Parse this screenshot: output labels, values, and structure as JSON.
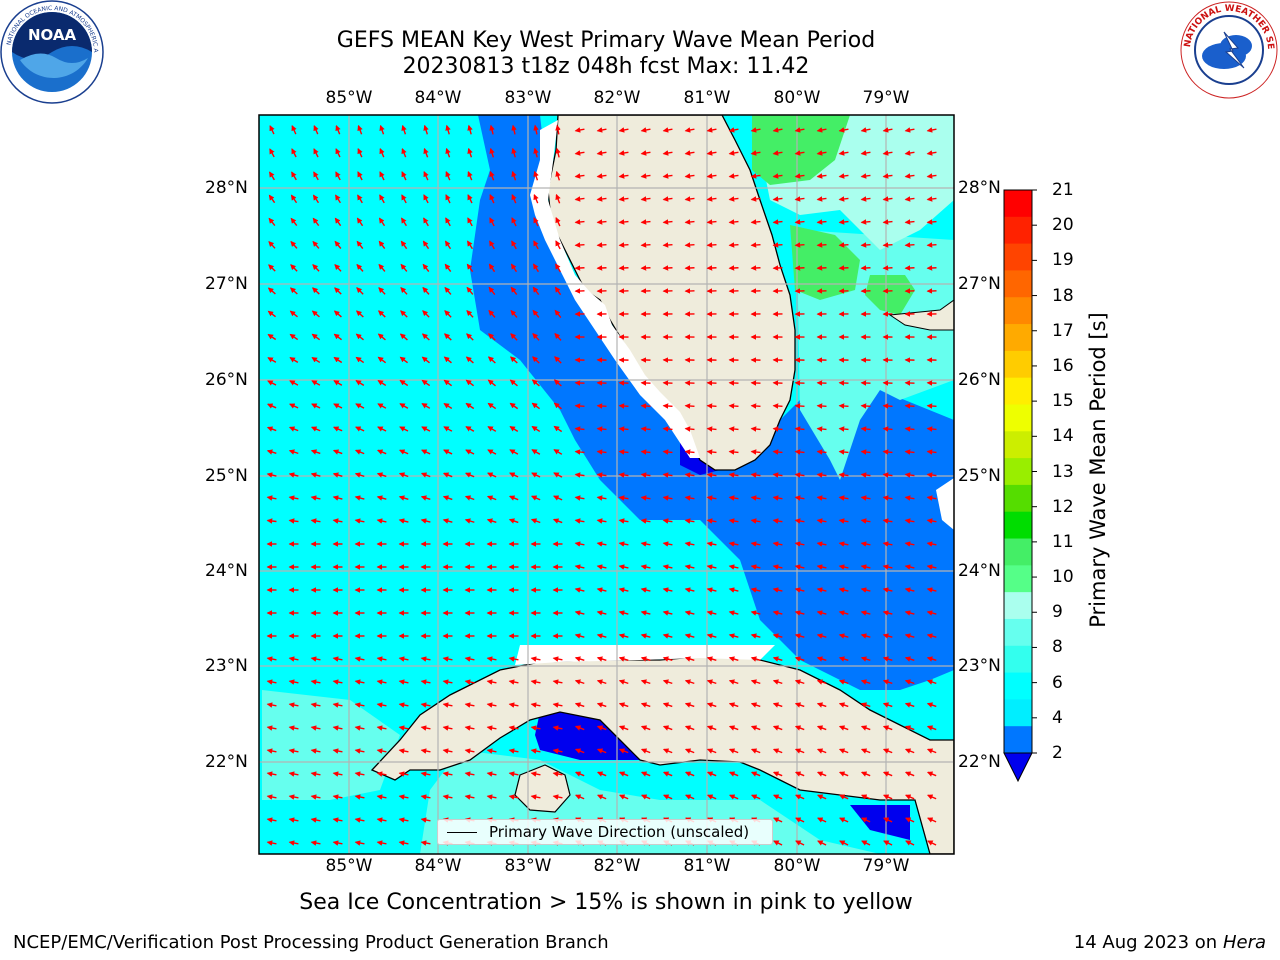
{
  "title": {
    "line1": "GEFS MEAN Key West Primary Wave Mean Period",
    "line2": "20230813 t18z 048h fcst   Max: 11.42"
  },
  "map": {
    "lon_labels": [
      "85°W",
      "84°W",
      "83°W",
      "82°W",
      "81°W",
      "80°W",
      "79°W"
    ],
    "lat_labels": [
      "28°N",
      "27°N",
      "26°N",
      "25°N",
      "24°N",
      "23°N",
      "22°N"
    ],
    "legend_label": "Primary Wave Direction (unscaled)",
    "vector_color": "#ff0000",
    "land_color": "#efecdc",
    "gridline_color": "#b3b3b3"
  },
  "colorbar": {
    "title": "Primary Wave Mean Period [s]",
    "ticks": [
      "21",
      "20",
      "19",
      "18",
      "17",
      "16",
      "15",
      "14",
      "13",
      "12",
      "11",
      "10",
      "9",
      "8",
      "6",
      "4",
      "2"
    ],
    "colors_top_to_bottom": [
      "#ff0000",
      "#ff2200",
      "#ff4400",
      "#ff6600",
      "#ff8800",
      "#ffaa00",
      "#ffcc00",
      "#ffee00",
      "#eeff00",
      "#ccee00",
      "#99ee00",
      "#55dd00",
      "#00dd00",
      "#44ee66",
      "#55ff88",
      "#aaffee",
      "#66ffee",
      "#33ffee",
      "#00ffff",
      "#00eeff",
      "#0077ff",
      "#0000ee"
    ]
  },
  "note": "Sea Ice Concentration > 15% is shown in pink to yellow",
  "footer": {
    "left": "NCEP/EMC/Verification Post Processing Product Generation Branch",
    "right_text": "14 Aug 2023 on",
    "right_host": "Hera"
  },
  "logos": {
    "noaa_text": "NOAA",
    "nws_text": "NATIONAL WEATHER SERVICE"
  }
}
